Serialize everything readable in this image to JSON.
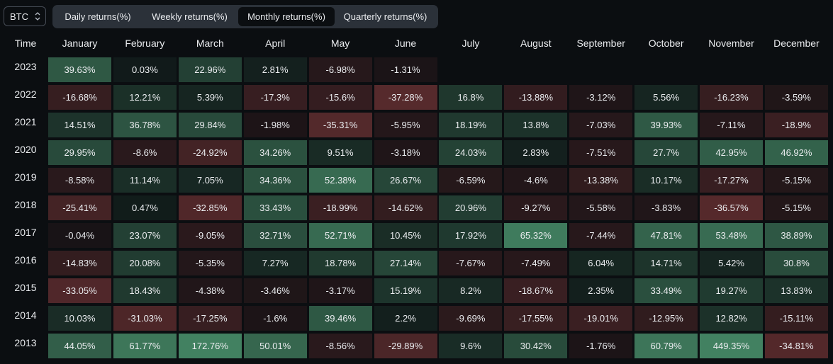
{
  "selector": {
    "value": "BTC",
    "icon": "chevron-updown-icon"
  },
  "tabs": [
    {
      "label": "Daily returns(%)",
      "active": false
    },
    {
      "label": "Weekly returns(%)",
      "active": false
    },
    {
      "label": "Monthly returns(%)",
      "active": true
    },
    {
      "label": "Quarterly returns(%)",
      "active": false
    }
  ],
  "table": {
    "time_header": "Time",
    "months": [
      "January",
      "February",
      "March",
      "April",
      "May",
      "June",
      "July",
      "August",
      "September",
      "October",
      "November",
      "December"
    ],
    "rows": [
      {
        "year": "2023",
        "values": [
          "39.63%",
          "0.03%",
          "22.96%",
          "2.81%",
          "-6.98%",
          "-1.31%",
          "",
          "",
          "",
          "",
          "",
          ""
        ]
      },
      {
        "year": "2022",
        "values": [
          "-16.68%",
          "12.21%",
          "5.39%",
          "-17.3%",
          "-15.6%",
          "-37.28%",
          "16.8%",
          "-13.88%",
          "-3.12%",
          "5.56%",
          "-16.23%",
          "-3.59%"
        ]
      },
      {
        "year": "2021",
        "values": [
          "14.51%",
          "36.78%",
          "29.84%",
          "-1.98%",
          "-35.31%",
          "-5.95%",
          "18.19%",
          "13.8%",
          "-7.03%",
          "39.93%",
          "-7.11%",
          "-18.9%"
        ]
      },
      {
        "year": "2020",
        "values": [
          "29.95%",
          "-8.6%",
          "-24.92%",
          "34.26%",
          "9.51%",
          "-3.18%",
          "24.03%",
          "2.83%",
          "-7.51%",
          "27.7%",
          "42.95%",
          "46.92%"
        ]
      },
      {
        "year": "2019",
        "values": [
          "-8.58%",
          "11.14%",
          "7.05%",
          "34.36%",
          "52.38%",
          "26.67%",
          "-6.59%",
          "-4.6%",
          "-13.38%",
          "10.17%",
          "-17.27%",
          "-5.15%"
        ]
      },
      {
        "year": "2018",
        "values": [
          "-25.41%",
          "0.47%",
          "-32.85%",
          "33.43%",
          "-18.99%",
          "-14.62%",
          "20.96%",
          "-9.27%",
          "-5.58%",
          "-3.83%",
          "-36.57%",
          "-5.15%"
        ]
      },
      {
        "year": "2017",
        "values": [
          "-0.04%",
          "23.07%",
          "-9.05%",
          "32.71%",
          "52.71%",
          "10.45%",
          "17.92%",
          "65.32%",
          "-7.44%",
          "47.81%",
          "53.48%",
          "38.89%"
        ]
      },
      {
        "year": "2016",
        "values": [
          "-14.83%",
          "20.08%",
          "-5.35%",
          "7.27%",
          "18.78%",
          "27.14%",
          "-7.67%",
          "-7.49%",
          "6.04%",
          "14.71%",
          "5.42%",
          "30.8%"
        ]
      },
      {
        "year": "2015",
        "values": [
          "-33.05%",
          "18.43%",
          "-4.38%",
          "-3.46%",
          "-3.17%",
          "15.19%",
          "8.2%",
          "-18.67%",
          "2.35%",
          "33.49%",
          "19.27%",
          "13.83%"
        ]
      },
      {
        "year": "2014",
        "values": [
          "10.03%",
          "-31.03%",
          "-17.25%",
          "-1.6%",
          "39.46%",
          "2.2%",
          "-9.69%",
          "-17.55%",
          "-19.01%",
          "-12.95%",
          "12.82%",
          "-15.11%"
        ]
      },
      {
        "year": "2013",
        "values": [
          "44.05%",
          "61.77%",
          "172.76%",
          "50.01%",
          "-8.56%",
          "-29.89%",
          "9.6%",
          "30.42%",
          "-1.76%",
          "60.79%",
          "449.35%",
          "-34.81%"
        ]
      }
    ]
  },
  "colors": {
    "positive": "#2ebd85",
    "negative": "#f6465d",
    "background": "#0b0e11"
  }
}
